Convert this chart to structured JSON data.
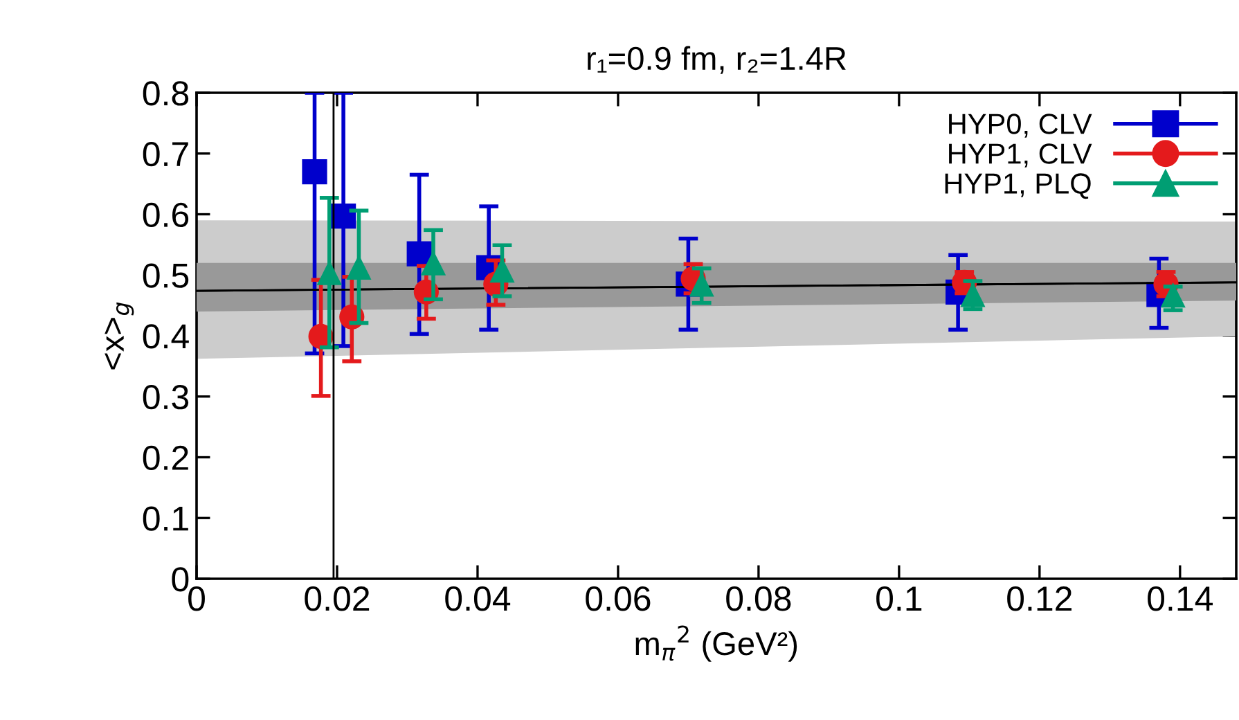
{
  "chart_data": {
    "type": "scatter",
    "title": "r₁=0.9 fm, r₂=1.4R",
    "xlabel": "m$_{π}$$^{2}$ (GeV²)",
    "ylabel": "<x>$_{g}$",
    "xlim": [
      0,
      0.148
    ],
    "ylim": [
      0,
      0.8
    ],
    "xticks": [
      0,
      0.02,
      0.04,
      0.06,
      0.08,
      0.1,
      0.12,
      0.14
    ],
    "yticks": [
      0,
      0.1,
      0.2,
      0.3,
      0.4,
      0.5,
      0.6,
      0.7,
      0.8
    ],
    "grid": false,
    "legend": "top right",
    "ref_lines": [
      {
        "axis": "x",
        "value": 0.0195,
        "color": "#000000"
      }
    ],
    "series": [
      {
        "type": "line",
        "color": "#000000",
        "marker": "none",
        "x": [
          0,
          0.148
        ],
        "values": [
          0.474,
          0.488
        ],
        "lower": [
          0.362,
          0.399
        ],
        "upper": [
          0.59,
          0.588
        ]
      },
      {
        "type": "line",
        "color": "#000000",
        "marker": "none",
        "x": [
          0,
          0.148
        ],
        "values": [
          0.474,
          0.488
        ],
        "lower": [
          0.44,
          0.458
        ],
        "upper": [
          0.52,
          0.52
        ]
      },
      {
        "name": "HYP0, CLV",
        "color": "#0000cc",
        "marker": "square",
        "x": [
          0.0168,
          0.0209,
          0.0317,
          0.0416,
          0.07,
          0.1084,
          0.137
        ],
        "values": [
          0.67,
          0.597,
          0.535,
          0.512,
          0.485,
          0.472,
          0.468
        ],
        "errors": [
          [
            0.371,
            0.8
          ],
          [
            0.383,
            0.8
          ],
          [
            0.403,
            0.665
          ],
          [
            0.41,
            0.613
          ],
          [
            0.41,
            0.56
          ],
          [
            0.41,
            0.533
          ],
          [
            0.413,
            0.527
          ]
        ]
      },
      {
        "name": "HYP1, CLV",
        "color": "#e41a1c",
        "marker": "circle",
        "x": [
          0.0177,
          0.0221,
          0.0327,
          0.0426,
          0.0707,
          0.1093,
          0.138
        ],
        "values": [
          0.399,
          0.431,
          0.472,
          0.485,
          0.494,
          0.488,
          0.485
        ],
        "errors": [
          [
            0.301,
            0.492
          ],
          [
            0.358,
            0.497
          ],
          [
            0.428,
            0.515
          ],
          [
            0.451,
            0.524
          ],
          [
            0.47,
            0.518
          ],
          [
            0.47,
            0.505
          ],
          [
            0.465,
            0.505
          ]
        ]
      },
      {
        "name": "HYP1, PLQ",
        "color": "#009e73",
        "marker": "triangle",
        "x": [
          0.0189,
          0.0231,
          0.0337,
          0.0435,
          0.0719,
          0.1105,
          0.139
        ],
        "values": [
          0.504,
          0.513,
          0.52,
          0.508,
          0.485,
          0.468,
          0.467
        ],
        "errors": [
          [
            0.381,
            0.627
          ],
          [
            0.421,
            0.606
          ],
          [
            0.46,
            0.574
          ],
          [
            0.465,
            0.549
          ],
          [
            0.454,
            0.511
          ],
          [
            0.444,
            0.49
          ],
          [
            0.442,
            0.481
          ]
        ]
      }
    ]
  }
}
